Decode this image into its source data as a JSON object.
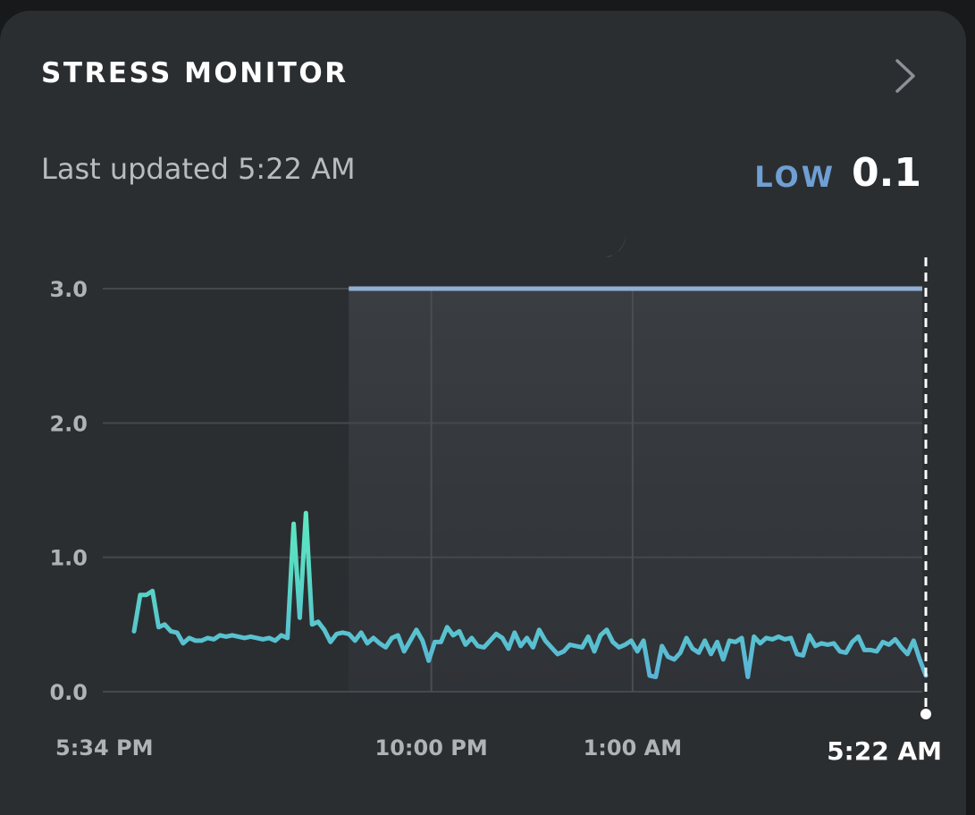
{
  "header": {
    "title": "STRESS MONITOR",
    "last_updated": "Last updated 5:22 AM",
    "level_label": "LOW",
    "score": "0.1"
  },
  "colors": {
    "sleep_band": "#8fb0d4",
    "line_low": "#5ab4d6",
    "line_high": "#5ee8c1",
    "level_label": "#6f9fd3"
  },
  "icons": {
    "details": "chevron-right-icon",
    "sleep": "moon-icon"
  },
  "chart_data": {
    "type": "line",
    "ylim": [
      0,
      3
    ],
    "yticks": [
      "3.0",
      "2.0",
      "1.0",
      "0.0"
    ],
    "ytick_values": [
      3,
      2,
      1,
      0
    ],
    "x_range_hours": [
      0,
      11.8
    ],
    "xticks": [
      {
        "label": "5:34 PM",
        "hour": 0
      },
      {
        "label": "10:00 PM",
        "hour": 4.43
      },
      {
        "label": "1:00 AM",
        "hour": 7.43
      },
      {
        "label": "5:22 AM",
        "hour": 11.8
      }
    ],
    "sleep_period": {
      "start_hour": 3.2,
      "end_hour": 11.8,
      "level": 3.0
    },
    "series": [
      {
        "values": [
          0.45,
          0.72,
          0.72,
          0.75,
          0.48,
          0.5,
          0.45,
          0.44,
          0.36,
          0.4,
          0.38,
          0.38,
          0.4,
          0.39,
          0.42,
          0.41,
          0.42,
          0.41,
          0.4,
          0.41,
          0.4,
          0.39,
          0.4,
          0.38,
          0.42,
          0.4,
          1.25,
          0.55,
          1.33,
          0.5,
          0.52,
          0.46,
          0.37,
          0.43,
          0.44,
          0.43,
          0.38,
          0.44,
          0.36,
          0.4,
          0.36,
          0.33,
          0.4,
          0.42,
          0.3,
          0.38,
          0.46,
          0.38,
          0.23,
          0.37,
          0.37,
          0.48,
          0.42,
          0.45,
          0.35,
          0.4,
          0.34,
          0.33,
          0.38,
          0.43,
          0.4,
          0.32,
          0.44,
          0.34,
          0.4,
          0.33,
          0.46,
          0.38,
          0.33,
          0.28,
          0.3,
          0.35,
          0.34,
          0.33,
          0.41,
          0.3,
          0.42,
          0.46,
          0.37,
          0.33,
          0.35,
          0.38,
          0.3,
          0.38,
          0.12,
          0.11,
          0.34,
          0.26,
          0.24,
          0.29,
          0.4,
          0.32,
          0.29,
          0.38,
          0.28,
          0.37,
          0.24,
          0.38,
          0.37,
          0.4,
          0.11,
          0.41,
          0.36,
          0.4,
          0.39,
          0.41,
          0.39,
          0.4,
          0.28,
          0.27,
          0.42,
          0.34,
          0.36,
          0.35,
          0.36,
          0.3,
          0.29,
          0.37,
          0.41,
          0.31,
          0.31,
          0.3,
          0.37,
          0.35,
          0.39,
          0.33,
          0.28,
          0.38,
          0.24,
          0.12
        ]
      }
    ],
    "current_marker_hour": 11.8
  }
}
